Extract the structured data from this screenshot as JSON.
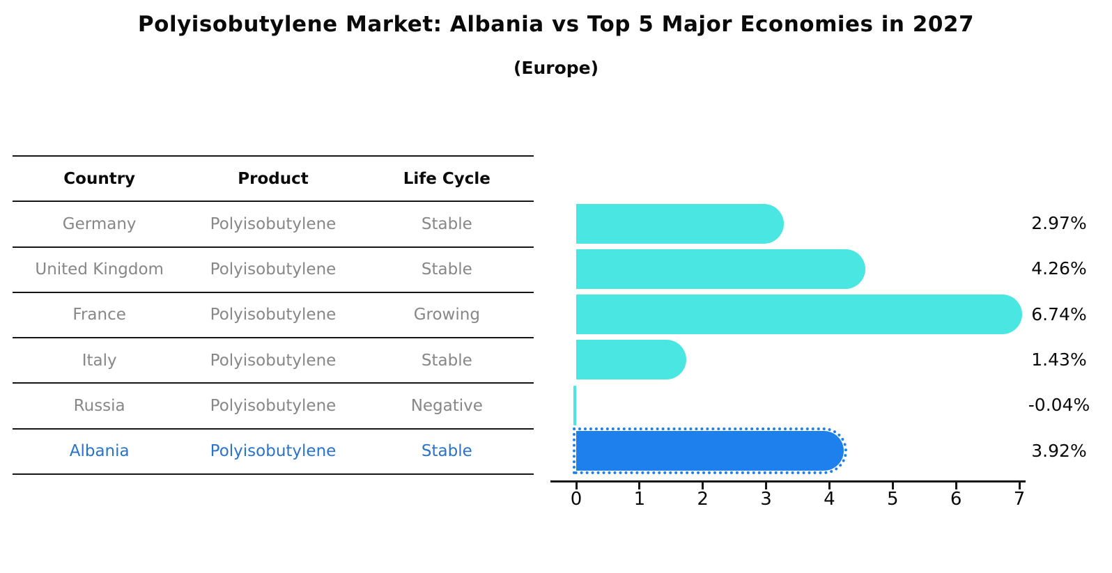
{
  "title": "Polyisobutylene Market: Albania vs Top 5 Major Economies in 2027",
  "subtitle": "(Europe)",
  "table": {
    "headers": [
      "Country",
      "Product",
      "Life Cycle"
    ],
    "rows": [
      {
        "country": "Germany",
        "product": "Polyisobutylene",
        "life_cycle": "Stable",
        "highlight": false
      },
      {
        "country": "United Kingdom",
        "product": "Polyisobutylene",
        "life_cycle": "Stable",
        "highlight": false
      },
      {
        "country": "France",
        "product": "Polyisobutylene",
        "life_cycle": "Growing",
        "highlight": false
      },
      {
        "country": "Italy",
        "product": "Polyisobutylene",
        "life_cycle": "Stable",
        "highlight": false
      },
      {
        "country": "Russia",
        "product": "Polyisobutylene",
        "life_cycle": "Negative",
        "highlight": false
      },
      {
        "country": "Albania",
        "product": "Polyisobutylene",
        "life_cycle": "Stable",
        "highlight": true
      }
    ]
  },
  "chart_data": {
    "type": "bar",
    "orientation": "horizontal",
    "categories": [
      "Germany",
      "United Kingdom",
      "France",
      "Italy",
      "Russia",
      "Albania"
    ],
    "values": [
      2.97,
      4.26,
      6.74,
      1.43,
      -0.04,
      3.92
    ],
    "value_labels": [
      "2.97%",
      "4.26%",
      "6.74%",
      "1.43%",
      "-0.04%",
      "3.92%"
    ],
    "xlim": [
      0,
      7
    ],
    "x_ticks": [
      0,
      1,
      2,
      3,
      4,
      5,
      6,
      7
    ],
    "grid": false,
    "legend": "none",
    "bar_color": "#4ae6e2",
    "highlight_color": "#1e80ec",
    "highlight_index": 5,
    "highlight_text_color": "#2a73c9"
  }
}
